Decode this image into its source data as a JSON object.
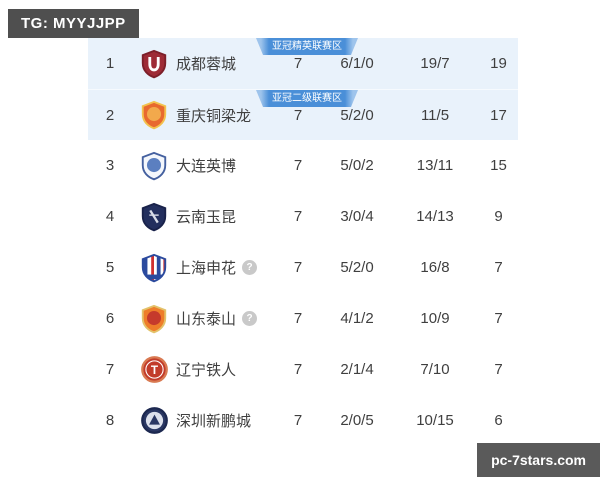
{
  "watermarks": {
    "top_left": "TG: MYYJJPP",
    "bottom_right": "pc-7stars.com"
  },
  "colors": {
    "highlight_row_bg": "#e9f2fb",
    "zone_badge_bg": "#4a8fd8",
    "zone_badge_edge": "#9ec4ec",
    "watermark_bg": "#4f4f4f",
    "text": "#3f3f3f",
    "question_icon_bg": "#c9c9c9"
  },
  "table": {
    "rows": [
      {
        "rank": "1",
        "team": "成都蓉城",
        "played": "7",
        "wdl": "6/1/0",
        "goals": "19/7",
        "points": "19",
        "zone_badge": "亚冠精英联赛区",
        "highlight": true,
        "has_question": false,
        "crest": {
          "type": "shield",
          "fill": "#9e2b36",
          "border": "#7c1f29",
          "emblem": "u",
          "emblemColor": "#ffffff"
        }
      },
      {
        "rank": "2",
        "team": "重庆铜梁龙",
        "played": "7",
        "wdl": "5/2/0",
        "goals": "11/5",
        "points": "17",
        "zone_badge": "亚冠二级联赛区",
        "highlight": true,
        "has_question": false,
        "crest": {
          "type": "shield",
          "fill": "#e8692f",
          "border": "#f3c24d",
          "emblem": "disc",
          "emblemColor": "#f2a94c"
        }
      },
      {
        "rank": "3",
        "team": "大连英博",
        "played": "7",
        "wdl": "5/0/2",
        "goals": "13/11",
        "points": "15",
        "highlight": false,
        "has_question": false,
        "crest": {
          "type": "shield",
          "fill": "#f4f7fc",
          "border": "#44609f",
          "emblem": "disc",
          "emblemColor": "#5b7fc0"
        }
      },
      {
        "rank": "4",
        "team": "云南玉昆",
        "played": "7",
        "wdl": "3/0/4",
        "goals": "14/13",
        "points": "9",
        "highlight": false,
        "has_question": false,
        "crest": {
          "type": "shield",
          "fill": "#232f5e",
          "border": "#19224a",
          "emblem": "slash",
          "emblemColor": "#d9dde8"
        }
      },
      {
        "rank": "5",
        "team": "上海申花",
        "played": "7",
        "wdl": "5/2/0",
        "goals": "16/8",
        "points": "7",
        "highlight": false,
        "has_question": true,
        "crest": {
          "type": "shield-striped",
          "fill": "#ffffff",
          "border": "#2b4a9e",
          "stripe1": "#2b4a9e",
          "stripe2": "#d03030"
        }
      },
      {
        "rank": "6",
        "team": "山东泰山",
        "played": "7",
        "wdl": "4/1/2",
        "goals": "10/9",
        "points": "7",
        "highlight": false,
        "has_question": true,
        "crest": {
          "type": "shield",
          "fill": "#ee7d2a",
          "border": "#e3c26a",
          "emblem": "disc",
          "emblemColor": "#c53a2c"
        }
      },
      {
        "rank": "7",
        "team": "辽宁铁人",
        "played": "7",
        "wdl": "2/1/4",
        "goals": "7/10",
        "points": "7",
        "highlight": false,
        "has_question": false,
        "crest": {
          "type": "circle",
          "fill": "#c23b2a",
          "border": "#d97a52",
          "emblem": "letter",
          "letter": "T",
          "emblemColor": "#ffffff"
        }
      },
      {
        "rank": "8",
        "team": "深圳新鹏城",
        "played": "7",
        "wdl": "2/0/5",
        "goals": "10/15",
        "points": "6",
        "highlight": false,
        "has_question": false,
        "crest": {
          "type": "circle",
          "fill": "#2a3763",
          "border": "#1c2850",
          "emblem": "tri",
          "emblemColor": "#dde1ec"
        }
      }
    ]
  }
}
